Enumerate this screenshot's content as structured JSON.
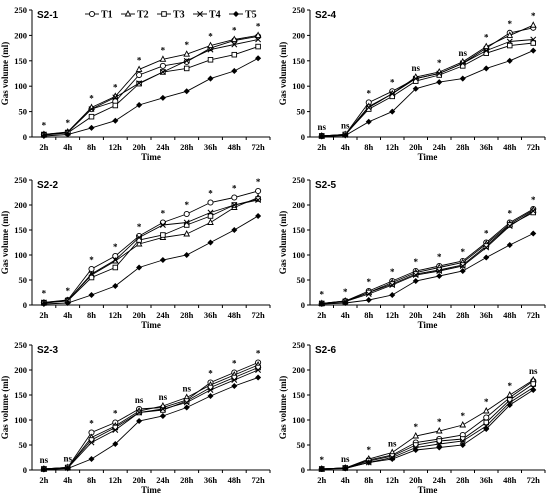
{
  "figure": {
    "legend": [
      "T1",
      "T2",
      "T3",
      "T4",
      "T5"
    ],
    "marker_types": [
      "circle",
      "triangle",
      "square",
      "cross",
      "diamond"
    ]
  },
  "chart_data": [
    {
      "type": "line",
      "title": "S2-1",
      "xlabel": "Time",
      "ylabel": "Gas volume (ml)",
      "categories": [
        "2h",
        "4h",
        "8h",
        "12h",
        "20h",
        "24h",
        "28h",
        "36h",
        "48h",
        "72h"
      ],
      "ylim": [
        0,
        250
      ],
      "yticks": [
        0,
        50,
        100,
        150,
        200,
        250
      ],
      "significance": [
        "*",
        "*",
        "*",
        "*",
        "*",
        "*",
        "*",
        "*",
        "*",
        "*"
      ],
      "series": [
        {
          "name": "T1",
          "values": [
            5,
            9,
            55,
            70,
            122,
            140,
            148,
            175,
            190,
            198
          ]
        },
        {
          "name": "T2",
          "values": [
            5,
            10,
            58,
            80,
            133,
            153,
            163,
            180,
            192,
            200
          ]
        },
        {
          "name": "T3",
          "values": [
            4,
            8,
            40,
            62,
            105,
            128,
            135,
            152,
            162,
            178
          ]
        },
        {
          "name": "T4",
          "values": [
            5,
            9,
            55,
            78,
            106,
            128,
            150,
            172,
            182,
            192
          ]
        },
        {
          "name": "T5",
          "values": [
            2,
            5,
            18,
            32,
            63,
            77,
            90,
            115,
            130,
            155
          ]
        }
      ]
    },
    {
      "type": "line",
      "title": "S2-4",
      "xlabel": "Time",
      "ylabel": "Gas volume (ml)",
      "categories": [
        "2h",
        "4h",
        "8h",
        "12h",
        "20h",
        "24h",
        "28h",
        "36h",
        "48h",
        "72h"
      ],
      "ylim": [
        0,
        250
      ],
      "yticks": [
        0,
        50,
        100,
        150,
        200,
        250
      ],
      "significance": [
        "ns",
        "ns",
        "*",
        "*",
        "ns",
        "*",
        "ns",
        "*",
        "*",
        "*"
      ],
      "series": [
        {
          "name": "T1",
          "values": [
            2,
            5,
            68,
            90,
            115,
            125,
            145,
            175,
            205,
            215
          ]
        },
        {
          "name": "T2",
          "values": [
            2,
            5,
            60,
            85,
            118,
            128,
            148,
            178,
            200,
            220
          ]
        },
        {
          "name": "T3",
          "values": [
            2,
            5,
            55,
            80,
            110,
            122,
            140,
            165,
            180,
            185
          ]
        },
        {
          "name": "T4",
          "values": [
            2,
            4,
            58,
            85,
            115,
            125,
            145,
            170,
            188,
            192
          ]
        },
        {
          "name": "T5",
          "values": [
            1,
            3,
            30,
            50,
            95,
            108,
            115,
            135,
            150,
            170
          ]
        }
      ]
    },
    {
      "type": "line",
      "title": "S2-2",
      "xlabel": "Time",
      "ylabel": "Gas volume (ml)",
      "categories": [
        "2h",
        "4h",
        "8h",
        "12h",
        "20h",
        "24h",
        "28h",
        "36h",
        "48h",
        "72h"
      ],
      "ylim": [
        0,
        250
      ],
      "yticks": [
        0,
        50,
        100,
        150,
        200,
        250
      ],
      "significance": [
        "*",
        "*",
        "*",
        "*",
        "*",
        "*",
        "*",
        "*",
        "*",
        "*"
      ],
      "series": [
        {
          "name": "T1",
          "values": [
            5,
            10,
            72,
            98,
            138,
            165,
            182,
            205,
            215,
            228
          ]
        },
        {
          "name": "T2",
          "values": [
            4,
            9,
            60,
            88,
            122,
            135,
            142,
            165,
            195,
            215
          ]
        },
        {
          "name": "T3",
          "values": [
            4,
            8,
            55,
            75,
            130,
            140,
            160,
            178,
            200,
            212
          ]
        },
        {
          "name": "T4",
          "values": [
            5,
            9,
            62,
            90,
            135,
            160,
            165,
            185,
            200,
            210
          ]
        },
        {
          "name": "T5",
          "values": [
            2,
            4,
            20,
            38,
            75,
            90,
            100,
            125,
            150,
            178
          ]
        }
      ]
    },
    {
      "type": "line",
      "title": "S2-5",
      "xlabel": "Time",
      "ylabel": "Gas volume (ml)",
      "categories": [
        "2h",
        "4h",
        "8h",
        "12h",
        "20h",
        "24h",
        "28h",
        "36h",
        "48h",
        "72h"
      ],
      "ylim": [
        0,
        250
      ],
      "yticks": [
        0,
        50,
        100,
        150,
        200,
        250
      ],
      "significance": [
        "*",
        "*",
        "*",
        "*",
        "*",
        "*",
        "*",
        "*",
        "*",
        "*"
      ],
      "series": [
        {
          "name": "T1",
          "values": [
            3,
            8,
            28,
            48,
            68,
            78,
            88,
            125,
            165,
            192
          ]
        },
        {
          "name": "T2",
          "values": [
            3,
            8,
            25,
            45,
            65,
            75,
            85,
            122,
            162,
            190
          ]
        },
        {
          "name": "T3",
          "values": [
            3,
            7,
            25,
            42,
            62,
            70,
            80,
            118,
            160,
            185
          ]
        },
        {
          "name": "T4",
          "values": [
            3,
            7,
            22,
            40,
            60,
            68,
            78,
            115,
            158,
            188
          ]
        },
        {
          "name": "T5",
          "values": [
            2,
            4,
            10,
            20,
            48,
            58,
            68,
            95,
            120,
            143
          ]
        }
      ]
    },
    {
      "type": "line",
      "title": "S2-3",
      "xlabel": "Time",
      "ylabel": "Gas volume (ml)",
      "categories": [
        "2h",
        "4h",
        "8h",
        "12h",
        "20h",
        "24h",
        "28h",
        "36h",
        "48h",
        "72h"
      ],
      "ylim": [
        0,
        250
      ],
      "yticks": [
        0,
        50,
        100,
        150,
        200,
        250
      ],
      "significance": [
        "ns",
        "ns",
        "*",
        "*",
        "ns",
        "ns",
        "ns",
        "*",
        "*",
        "*"
      ],
      "series": [
        {
          "name": "T1",
          "values": [
            2,
            5,
            75,
            95,
            122,
            125,
            140,
            175,
            195,
            215
          ]
        },
        {
          "name": "T2",
          "values": [
            2,
            5,
            65,
            88,
            118,
            128,
            145,
            170,
            190,
            210
          ]
        },
        {
          "name": "T3",
          "values": [
            2,
            5,
            60,
            85,
            115,
            120,
            138,
            165,
            185,
            205
          ]
        },
        {
          "name": "T4",
          "values": [
            2,
            4,
            55,
            80,
            115,
            122,
            135,
            160,
            180,
            200
          ]
        },
        {
          "name": "T5",
          "values": [
            1,
            3,
            22,
            52,
            98,
            108,
            125,
            148,
            168,
            185
          ]
        }
      ]
    },
    {
      "type": "line",
      "title": "S2-6",
      "xlabel": "Time",
      "ylabel": "Gas volume (ml)",
      "categories": [
        "2h",
        "4h",
        "8h",
        "12h",
        "20h",
        "24h",
        "28h",
        "36h",
        "48h",
        "72h"
      ],
      "ylim": [
        0,
        250
      ],
      "yticks": [
        0,
        50,
        100,
        150,
        200,
        250
      ],
      "significance": [
        "*",
        "ns",
        "*",
        "ns",
        "*",
        "*",
        "*",
        "*",
        "*",
        "ns"
      ],
      "series": [
        {
          "name": "T1",
          "values": [
            2,
            4,
            20,
            30,
            55,
            62,
            70,
            105,
            145,
            178
          ]
        },
        {
          "name": "T2",
          "values": [
            2,
            4,
            22,
            35,
            68,
            78,
            90,
            118,
            150,
            180
          ]
        },
        {
          "name": "T3",
          "values": [
            2,
            4,
            18,
            28,
            50,
            58,
            62,
            95,
            140,
            172
          ]
        },
        {
          "name": "T4",
          "values": [
            2,
            4,
            15,
            25,
            45,
            52,
            58,
            88,
            135,
            165
          ]
        },
        {
          "name": "T5",
          "values": [
            2,
            3,
            15,
            22,
            40,
            45,
            50,
            82,
            130,
            160
          ]
        }
      ]
    }
  ]
}
